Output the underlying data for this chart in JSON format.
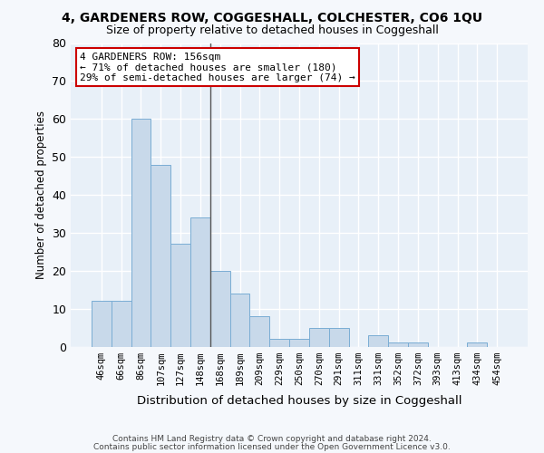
{
  "title": "4, GARDENERS ROW, COGGESHALL, COLCHESTER, CO6 1QU",
  "subtitle": "Size of property relative to detached houses in Coggeshall",
  "xlabel": "Distribution of detached houses by size in Coggeshall",
  "ylabel": "Number of detached properties",
  "bar_color": "#c8d9ea",
  "bar_edge_color": "#7aadd4",
  "bg_color": "#e8f0f8",
  "fig_color": "#f5f8fc",
  "grid_color": "#ffffff",
  "categories": [
    "46sqm",
    "66sqm",
    "86sqm",
    "107sqm",
    "127sqm",
    "148sqm",
    "168sqm",
    "189sqm",
    "209sqm",
    "229sqm",
    "250sqm",
    "270sqm",
    "291sqm",
    "311sqm",
    "331sqm",
    "352sqm",
    "372sqm",
    "393sqm",
    "413sqm",
    "434sqm",
    "454sqm"
  ],
  "values": [
    12,
    12,
    60,
    48,
    27,
    34,
    20,
    14,
    8,
    2,
    2,
    5,
    5,
    0,
    3,
    1,
    1,
    0,
    0,
    1,
    0
  ],
  "ylim": [
    0,
    80
  ],
  "yticks": [
    0,
    10,
    20,
    30,
    40,
    50,
    60,
    70,
    80
  ],
  "annotation_line1": "4 GARDENERS ROW: 156sqm",
  "annotation_line2": "← 71% of detached houses are smaller (180)",
  "annotation_line3": "29% of semi-detached houses are larger (74) →",
  "annotation_box_color": "#ffffff",
  "annotation_border_color": "#cc0000",
  "property_line_idx": 5.5,
  "footnote1": "Contains HM Land Registry data © Crown copyright and database right 2024.",
  "footnote2": "Contains public sector information licensed under the Open Government Licence v3.0."
}
